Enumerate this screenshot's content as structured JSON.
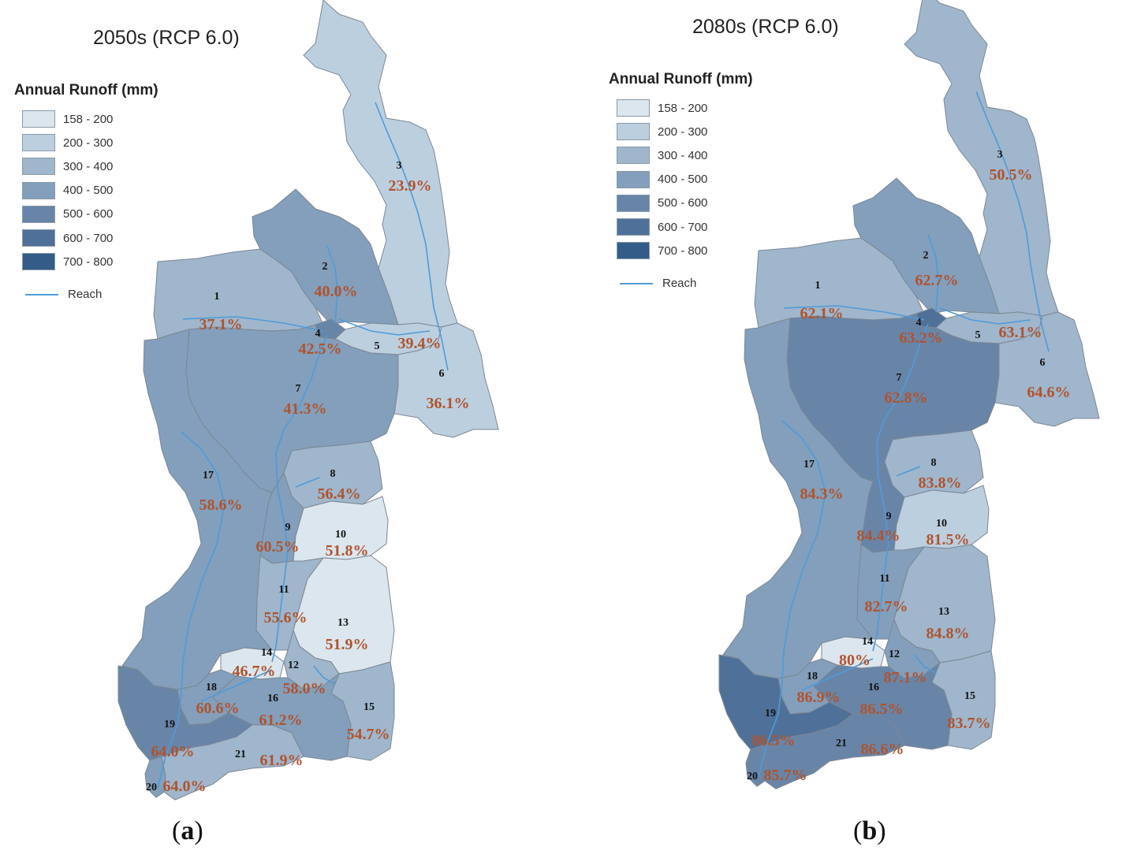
{
  "legend": {
    "title": "Annual Runoff (mm)",
    "classes": [
      {
        "label": "158 - 200",
        "color": "#dbe6ee"
      },
      {
        "label": "200 - 300",
        "color": "#bccfdf"
      },
      {
        "label": "300 - 400",
        "color": "#9fb6cc"
      },
      {
        "label": "400 - 500",
        "color": "#839fbb"
      },
      {
        "label": "500 - 600",
        "color": "#6885a8"
      },
      {
        "label": "600 - 700",
        "color": "#4f7199"
      },
      {
        "label": "700 - 800",
        "color": "#335c88"
      }
    ],
    "reach_label": "Reach",
    "reach_color": "#4f9bd9"
  },
  "panels": [
    {
      "title": "2050s (RCP 6.0)",
      "letter": "a",
      "subbasins": [
        {
          "id": "1",
          "pct": "37.1%",
          "cls": 2
        },
        {
          "id": "2",
          "pct": "40.0%",
          "cls": 3
        },
        {
          "id": "3",
          "pct": "23.9%",
          "cls": 1
        },
        {
          "id": "4",
          "pct": "42.5%",
          "cls": 4
        },
        {
          "id": "5",
          "pct": "39.4%",
          "cls": 1
        },
        {
          "id": "6",
          "pct": "36.1%",
          "cls": 1
        },
        {
          "id": "7",
          "pct": "41.3%",
          "cls": 3
        },
        {
          "id": "8",
          "pct": "56.4%",
          "cls": 2
        },
        {
          "id": "9",
          "pct": "60.5%",
          "cls": 3
        },
        {
          "id": "10",
          "pct": "51.8%",
          "cls": 0
        },
        {
          "id": "11",
          "pct": "55.6%",
          "cls": 2
        },
        {
          "id": "12",
          "pct": "58.0%",
          "cls": 2
        },
        {
          "id": "13",
          "pct": "51.9%",
          "cls": 0
        },
        {
          "id": "14",
          "pct": "46.7%",
          "cls": 0
        },
        {
          "id": "15",
          "pct": "54.7%",
          "cls": 2
        },
        {
          "id": "16",
          "pct": "61.2%",
          "cls": 3
        },
        {
          "id": "17",
          "pct": "58.6%",
          "cls": 3
        },
        {
          "id": "18",
          "pct": "60.6%",
          "cls": 3
        },
        {
          "id": "19",
          "pct": "64.0%",
          "cls": 4
        },
        {
          "id": "20",
          "pct": "64.0%",
          "cls": 3
        },
        {
          "id": "21",
          "pct": "61.9%",
          "cls": 2
        }
      ]
    },
    {
      "title": "2080s (RCP 6.0)",
      "letter": "b",
      "subbasins": [
        {
          "id": "1",
          "pct": "62.1%",
          "cls": 2
        },
        {
          "id": "2",
          "pct": "62.7%",
          "cls": 3
        },
        {
          "id": "3",
          "pct": "50.5%",
          "cls": 2
        },
        {
          "id": "4",
          "pct": "63.2%",
          "cls": 5
        },
        {
          "id": "5",
          "pct": "63.1%",
          "cls": 2
        },
        {
          "id": "6",
          "pct": "64.6%",
          "cls": 2
        },
        {
          "id": "7",
          "pct": "62.8%",
          "cls": 4
        },
        {
          "id": "8",
          "pct": "83.8%",
          "cls": 2
        },
        {
          "id": "9",
          "pct": "84.4%",
          "cls": 4
        },
        {
          "id": "10",
          "pct": "81.5%",
          "cls": 1
        },
        {
          "id": "11",
          "pct": "82.7%",
          "cls": 3
        },
        {
          "id": "12",
          "pct": "87.1%",
          "cls": 3
        },
        {
          "id": "13",
          "pct": "84.8%",
          "cls": 2
        },
        {
          "id": "14",
          "pct": "80%",
          "cls": 0
        },
        {
          "id": "15",
          "pct": "83.7%",
          "cls": 2
        },
        {
          "id": "16",
          "pct": "86.5%",
          "cls": 4
        },
        {
          "id": "17",
          "pct": "84.3%",
          "cls": 3
        },
        {
          "id": "18",
          "pct": "86.9%",
          "cls": 3
        },
        {
          "id": "19",
          "pct": "86.5%",
          "cls": 5
        },
        {
          "id": "20",
          "pct": "85.7%",
          "cls": 4
        },
        {
          "id": "21",
          "pct": "86.6%",
          "cls": 4
        }
      ]
    }
  ]
}
